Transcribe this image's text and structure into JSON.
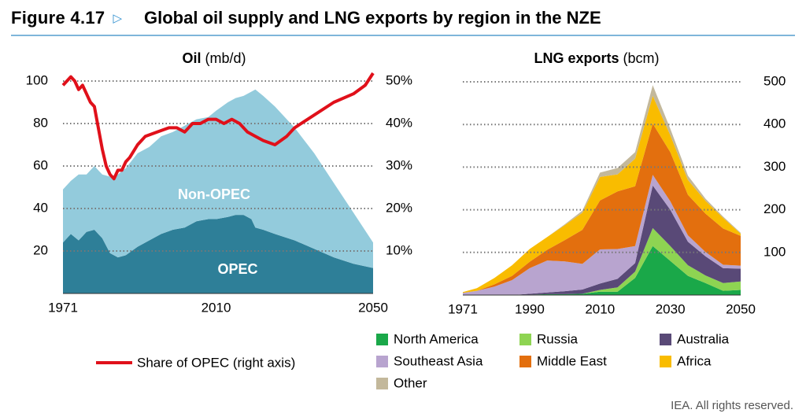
{
  "figure": {
    "label": "Figure 4.17",
    "arrow": "▷",
    "title": "Global oil supply and LNG exports by region in the NZE"
  },
  "footer": "IEA. All rights reserved.",
  "chart_data": [
    {
      "type": "area",
      "title_bold": "Oil",
      "title_unit": "(mb/d)",
      "x_ticks": [
        "1971",
        "2010",
        "2050"
      ],
      "xlim": [
        1971,
        2050
      ],
      "y_ticks": [
        "20",
        "40",
        "60",
        "80",
        "100"
      ],
      "ylim": [
        0,
        100
      ],
      "y2_ticks": [
        "10%",
        "20%",
        "30%",
        "40%",
        "50%"
      ],
      "y2lim": [
        0,
        50
      ],
      "grid": true,
      "x": [
        1971,
        1973,
        1975,
        1977,
        1979,
        1981,
        1983,
        1985,
        1987,
        1990,
        1993,
        1996,
        1999,
        2002,
        2005,
        2008,
        2010,
        2013,
        2015,
        2017,
        2019,
        2020,
        2022,
        2025,
        2030,
        2035,
        2040,
        2045,
        2050
      ],
      "series": [
        {
          "name": "OPEC",
          "color": "#2e7f98",
          "values": [
            24,
            28,
            25,
            29,
            30,
            26,
            19,
            17,
            18,
            22,
            25,
            28,
            30,
            31,
            34,
            35,
            35,
            36,
            37,
            37,
            35,
            31,
            30,
            28,
            25,
            21,
            17,
            14,
            12
          ]
        },
        {
          "name": "Non-OPEC",
          "color": "#93cbdc",
          "values": [
            25,
            25,
            31,
            27,
            30,
            30,
            36,
            39,
            41,
            44,
            44,
            46,
            46,
            48,
            48,
            48,
            51,
            54,
            55,
            56,
            60,
            65,
            63,
            60,
            53,
            45,
            35,
            24,
            12
          ]
        }
      ],
      "line_series": {
        "name": "Share of OPEC (right axis)",
        "color": "#e0101a",
        "x": [
          1971,
          1972,
          1973,
          1974,
          1975,
          1976,
          1977,
          1978,
          1979,
          1980,
          1981,
          1982,
          1983,
          1984,
          1985,
          1986,
          1987,
          1988,
          1990,
          1992,
          1995,
          1998,
          2000,
          2002,
          2004,
          2006,
          2008,
          2010,
          2012,
          2014,
          2016,
          2018,
          2020,
          2022,
          2025,
          2028,
          2030,
          2035,
          2040,
          2045,
          2048,
          2050
        ],
        "values": [
          49,
          50,
          51,
          50,
          48,
          49,
          47,
          45,
          44,
          39,
          34,
          30,
          28,
          27,
          29,
          29,
          31,
          32,
          35,
          37,
          38,
          39,
          39,
          38,
          40,
          40,
          41,
          41,
          40,
          41,
          40,
          38,
          37,
          36,
          35,
          37,
          39,
          42,
          45,
          47,
          49,
          52
        ]
      }
    },
    {
      "type": "area",
      "title_bold": "LNG exports",
      "title_unit": "(bcm)",
      "x_ticks": [
        "1971",
        "1990",
        "2010",
        "2030",
        "2050"
      ],
      "xlim": [
        1971,
        2050
      ],
      "y_ticks": [
        "100",
        "200",
        "300",
        "400",
        "500"
      ],
      "ylim": [
        0,
        500
      ],
      "grid": true,
      "x": [
        1971,
        1975,
        1980,
        1985,
        1990,
        1995,
        2000,
        2005,
        2010,
        2015,
        2020,
        2025,
        2030,
        2035,
        2040,
        2045,
        2050
      ],
      "series": [
        {
          "name": "North America",
          "color": "#1aa849",
          "values": [
            0,
            0,
            0,
            0,
            1,
            2,
            2,
            3,
            8,
            8,
            40,
            115,
            80,
            45,
            28,
            10,
            12
          ]
        },
        {
          "name": "Russia",
          "color": "#8ed452",
          "values": [
            0,
            0,
            0,
            0,
            0,
            0,
            0,
            0,
            4,
            10,
            15,
            42,
            35,
            25,
            18,
            18,
            20
          ]
        },
        {
          "name": "Australia",
          "color": "#594977",
          "values": [
            0,
            0,
            0,
            0,
            2,
            4,
            7,
            10,
            15,
            20,
            20,
            100,
            85,
            55,
            45,
            35,
            30
          ]
        },
        {
          "name": "Southeast Asia",
          "color": "#b8a4cf",
          "values": [
            5,
            10,
            20,
            35,
            60,
            75,
            70,
            60,
            80,
            70,
            40,
            25,
            20,
            15,
            10,
            8,
            7
          ]
        },
        {
          "name": "Middle East",
          "color": "#e36f0e",
          "values": [
            0,
            0,
            5,
            10,
            15,
            25,
            50,
            80,
            115,
            135,
            140,
            120,
            115,
            95,
            90,
            85,
            70
          ]
        },
        {
          "name": "Africa",
          "color": "#f9bc00",
          "values": [
            2,
            6,
            15,
            25,
            30,
            30,
            35,
            40,
            55,
            40,
            65,
            65,
            40,
            35,
            30,
            25,
            5
          ]
        },
        {
          "name": "Other",
          "color": "#c3b89b",
          "values": [
            0,
            0,
            0,
            0,
            0,
            0,
            2,
            5,
            10,
            15,
            15,
            25,
            15,
            10,
            5,
            3,
            2
          ]
        }
      ]
    }
  ]
}
